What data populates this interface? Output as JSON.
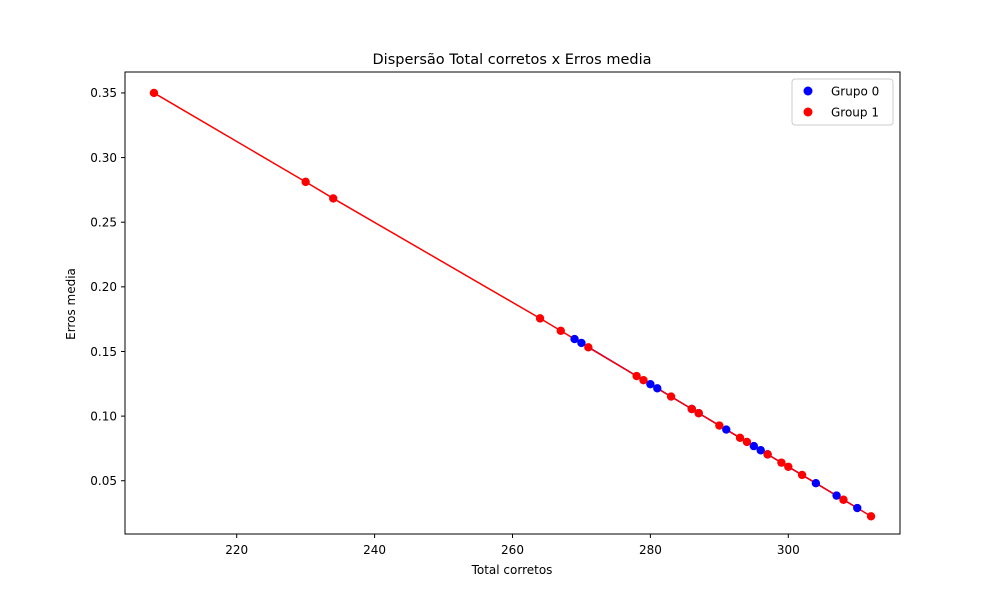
{
  "chart_data": {
    "type": "scatter",
    "title": "Dispersão Total corretos x Erros media",
    "xlabel": "Total corretos",
    "ylabel": "Erros media",
    "xlim": [
      203.8,
      316.2
    ],
    "ylim": [
      0.0088,
      0.3662
    ],
    "xticks": [
      220,
      240,
      260,
      280,
      300
    ],
    "xtick_labels": [
      "220",
      "240",
      "260",
      "280",
      "300"
    ],
    "yticks": [
      0.05,
      0.1,
      0.15,
      0.2,
      0.25,
      0.3,
      0.35
    ],
    "ytick_labels": [
      "0.05",
      "0.10",
      "0.15",
      "0.20",
      "0.25",
      "0.30",
      "0.35"
    ],
    "grid": false,
    "legend_position": "top-right",
    "series": [
      {
        "name": "Grupo 0",
        "color": "#0000ff",
        "line": true,
        "x": [
          269,
          270,
          280,
          281,
          286,
          287,
          291,
          295,
          296,
          297,
          304,
          307,
          310
        ],
        "y": [
          0.1596,
          0.1566,
          0.1247,
          0.1215,
          0.1055,
          0.1023,
          0.0896,
          0.0768,
          0.0736,
          0.0704,
          0.0481,
          0.0385,
          0.0289
        ]
      },
      {
        "name": "Group 1",
        "color": "#ff0000",
        "line": true,
        "x": [
          208,
          230,
          234,
          264,
          267,
          271,
          278,
          279,
          283,
          286,
          287,
          290,
          293,
          294,
          297,
          299,
          300,
          302,
          308,
          312
        ],
        "y": [
          0.35,
          0.2812,
          0.2684,
          0.1756,
          0.166,
          0.1532,
          0.131,
          0.1278,
          0.1151,
          0.1055,
          0.1023,
          0.0927,
          0.0832,
          0.08,
          0.0704,
          0.064,
          0.0608,
          0.0545,
          0.0353,
          0.0225
        ]
      }
    ]
  }
}
